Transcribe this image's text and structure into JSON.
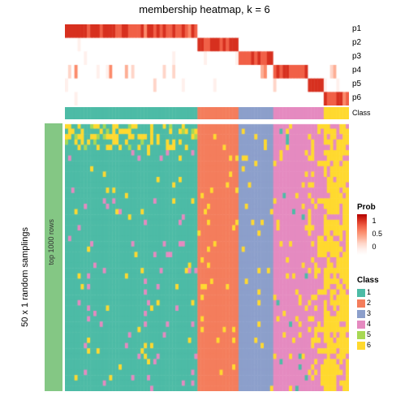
{
  "title": "membership heatmap, k = 6",
  "left_label_outer": "50 x 1 random samplings",
  "left_label_inner": "top 1000 rows",
  "p_labels": [
    "p1",
    "p2",
    "p3",
    "p4",
    "p5",
    "p6"
  ],
  "class_strip_label": "Class",
  "prob_legend": {
    "title": "Prob",
    "ticks": [
      "1",
      "0.5",
      "0"
    ],
    "colors": [
      "#ffffff",
      "#fff0ec",
      "#ffd5c8",
      "#fdae95",
      "#fb8a6a",
      "#f16047",
      "#d7301f",
      "#b30000"
    ]
  },
  "class_legend": {
    "title": "Class",
    "items": [
      {
        "label": "1",
        "color": "#4DBBA6"
      },
      {
        "label": "2",
        "color": "#F47D5C"
      },
      {
        "label": "3",
        "color": "#8C9FCB"
      },
      {
        "label": "4",
        "color": "#E58AC0"
      },
      {
        "label": "5",
        "color": "#A8D854"
      },
      {
        "label": "6",
        "color": "#FFD92F"
      }
    ]
  },
  "colors": {
    "bg": "#ffffff",
    "left_ann": "#84C784"
  },
  "heatmap": {
    "n_cols": 90,
    "class_boundaries": [
      0,
      42,
      55,
      66,
      77,
      82,
      90
    ],
    "class_ids": [
      1,
      2,
      3,
      4,
      6,
      6
    ],
    "prob_rows": 6,
    "main_rows": 50,
    "noise_seed": 42
  }
}
